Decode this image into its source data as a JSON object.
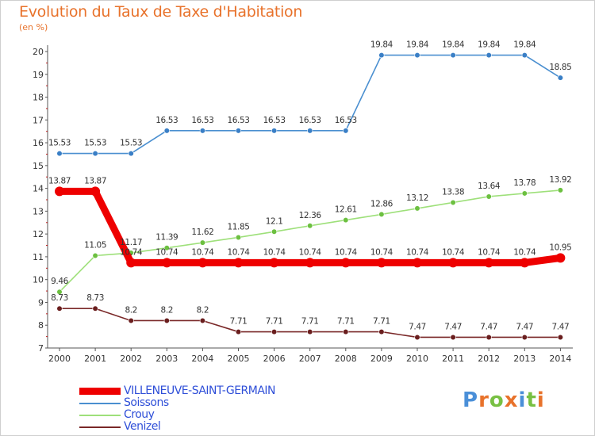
{
  "title": "Evolution du Taux de Taxe d'Habitation",
  "unit_label": "(en %)",
  "logo": {
    "text": "Proxiti",
    "colors": [
      "#4a8fd8",
      "#e8722b",
      "#78c043",
      "#e8722b",
      "#4a8fd8",
      "#78c043",
      "#e8722b"
    ]
  },
  "chart_data": {
    "type": "line",
    "title": "Evolution du Taux de Taxe d'Habitation",
    "ylabel": "(en %)",
    "categories": [
      "2000",
      "2001",
      "2002",
      "2003",
      "2004",
      "2005",
      "2006",
      "2007",
      "2008",
      "2009",
      "2010",
      "2011",
      "2012",
      "2013",
      "2014"
    ],
    "y_ticks": [
      "7",
      "8",
      "9",
      "10",
      "11",
      "12",
      "13",
      "14",
      "15",
      "16",
      "17",
      "18",
      "19",
      "20"
    ],
    "ylim": [
      7,
      20
    ],
    "grid": false,
    "legend_position": "bottom-left",
    "series": [
      {
        "name": "Soissons",
        "color": "#4a8fd0",
        "dot": "#3a7fc6",
        "values": [
          15.53,
          15.53,
          15.53,
          16.53,
          16.53,
          16.53,
          16.53,
          16.53,
          16.53,
          19.84,
          19.84,
          19.84,
          19.84,
          19.84,
          18.85
        ],
        "labels": [
          "15.53",
          "15.53",
          "15.53",
          "16.53",
          "16.53",
          "16.53",
          "16.53",
          "16.53",
          "16.53",
          "19.84",
          "19.84",
          "19.84",
          "19.84",
          "19.84",
          "18.85"
        ]
      },
      {
        "name": "Crouy",
        "color": "#9ee07a",
        "dot": "#6cc040",
        "values": [
          9.46,
          11.05,
          11.17,
          11.39,
          11.62,
          11.85,
          12.1,
          12.36,
          12.61,
          12.86,
          13.12,
          13.38,
          13.64,
          13.78,
          13.92
        ],
        "labels": [
          "9.46",
          "11.05",
          "11.17",
          "11.39",
          "11.62",
          "11.85",
          "12.1",
          "12.36",
          "12.61",
          "12.86",
          "13.12",
          "13.38",
          "13.64",
          "13.78",
          "13.92"
        ]
      },
      {
        "name": "Venizel",
        "color": "#7a2828",
        "dot": "#6a1e1e",
        "values": [
          8.73,
          8.73,
          8.2,
          8.2,
          8.2,
          7.71,
          7.71,
          7.71,
          7.71,
          7.71,
          7.47,
          7.47,
          7.47,
          7.47,
          7.47
        ],
        "labels": [
          "8.73",
          "8.73",
          "8.2",
          "8.2",
          "8.2",
          "7.71",
          "7.71",
          "7.71",
          "7.71",
          "7.71",
          "7.47",
          "7.47",
          "7.47",
          "7.47",
          "7.47"
        ]
      },
      {
        "name": "VILLENEUVE-SAINT-GERMAIN",
        "color": "#ee0000",
        "dot": "#ee0000",
        "values": [
          13.87,
          13.87,
          10.74,
          10.74,
          10.74,
          10.74,
          10.74,
          10.74,
          10.74,
          10.74,
          10.74,
          10.74,
          10.74,
          10.74,
          10.95
        ],
        "labels": [
          "13.87",
          "13.87",
          "10.74",
          "10.74",
          "10.74",
          "10.74",
          "10.74",
          "10.74",
          "10.74",
          "10.74",
          "10.74",
          "10.74",
          "10.74",
          "10.74",
          "10.95"
        ]
      }
    ]
  },
  "legend": [
    {
      "name": "VILLENEUVE-SAINT-GERMAIN",
      "color": "#ee0000"
    },
    {
      "name": "Soissons",
      "color": "#4a8fd0"
    },
    {
      "name": "Crouy",
      "color": "#9ee07a"
    },
    {
      "name": "Venizel",
      "color": "#7a2828"
    }
  ]
}
